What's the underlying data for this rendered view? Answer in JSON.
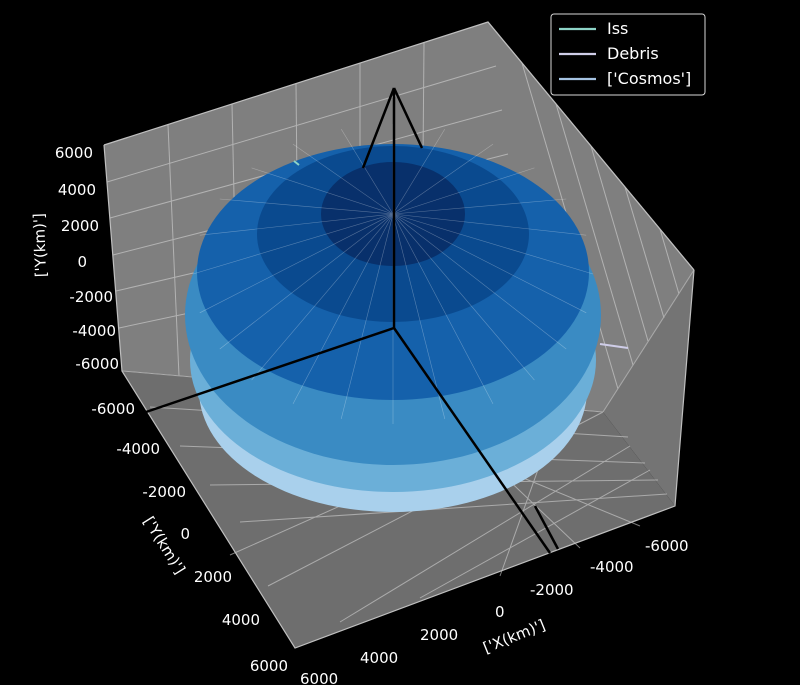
{
  "chart_data": {
    "type": "3d-line",
    "xlabel": "['X(km)']",
    "ylabel": "['Y(km)']",
    "zlabel": "['Y(km)']",
    "xlim": [
      -6000,
      6000
    ],
    "ylim": [
      -6000,
      6000
    ],
    "zlim": [
      -6000,
      6000
    ],
    "x_ticks": [
      "-6000",
      "-4000",
      "-2000",
      "0",
      "2000",
      "4000",
      "6000"
    ],
    "y_ticks": [
      "-6000",
      "-4000",
      "-2000",
      "0",
      "2000",
      "4000",
      "6000"
    ],
    "z_ticks": [
      "6000",
      "4000",
      "2000",
      "0",
      "-2000",
      "-4000",
      "-6000"
    ],
    "grid": true,
    "legend_position": "top-right",
    "series": [
      {
        "name": "Iss",
        "color": "#8dd3c7"
      },
      {
        "name": "Debris",
        "color": "#cfcde8"
      },
      {
        "name": "['Cosmos']",
        "color": "#a5c3e2"
      }
    ],
    "earth_sphere": {
      "radius_km": 6371,
      "colors": [
        "#08306b",
        "#0a4a8f",
        "#1561ab",
        "#3a8bc3",
        "#6bafd8",
        "#a9d0ec"
      ]
    },
    "coordinate_axes": "x, y, z origin lines in black"
  }
}
